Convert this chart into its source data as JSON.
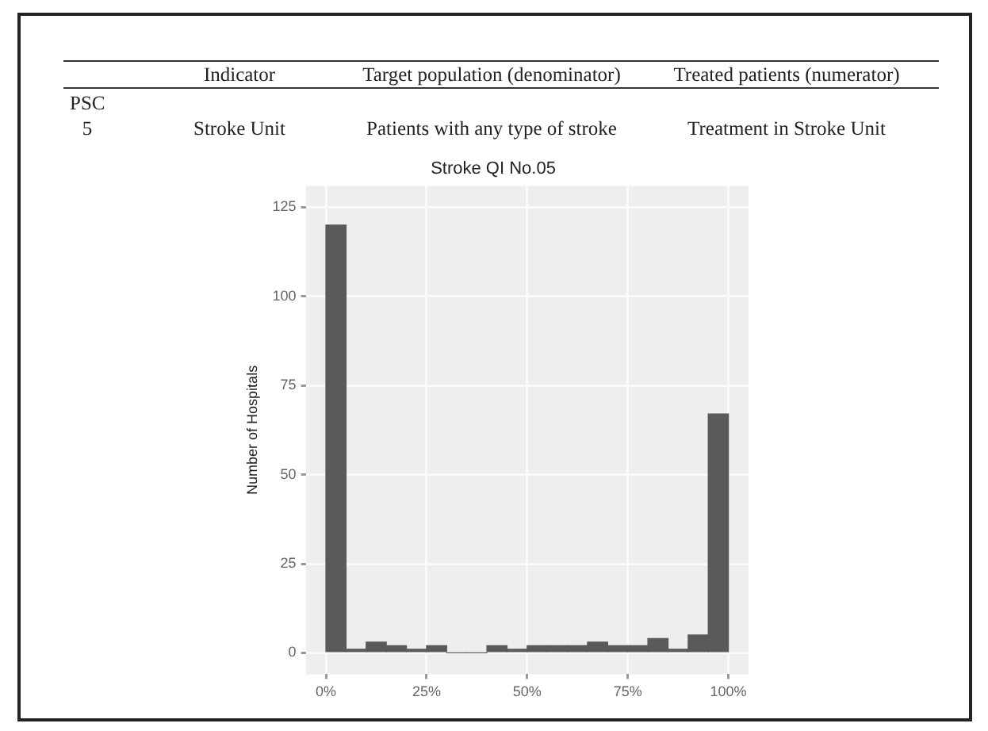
{
  "chart_data": {
    "type": "histogram",
    "title": "Stroke QI No.05",
    "ylabel": "Number of Hospitals",
    "bins": [
      0,
      5,
      10,
      15,
      20,
      25,
      30,
      35,
      40,
      45,
      50,
      55,
      60,
      65,
      70,
      75,
      80,
      85,
      90,
      95,
      100
    ],
    "values": [
      120,
      1,
      3,
      2,
      1,
      2,
      0,
      0,
      2,
      1,
      2,
      2,
      2,
      3,
      2,
      2,
      4,
      1,
      5,
      67
    ],
    "color": "#5a5a5a",
    "xlim": [
      -5,
      105
    ],
    "xticks": [
      {
        "value": 0,
        "label": "0%"
      },
      {
        "value": 25,
        "label": "25%"
      },
      {
        "value": 50,
        "label": "50%"
      },
      {
        "value": 75,
        "label": "75%"
      },
      {
        "value": 100,
        "label": "100%"
      }
    ],
    "ylim": [
      -6,
      131
    ],
    "yticks": [
      0,
      25,
      50,
      75,
      100,
      125
    ],
    "grid": true,
    "legend": false,
    "annotations": [
      "Indicator",
      "Target population (denominator)",
      "Treated patients (numerator)",
      "PSC",
      "5",
      "Stroke Unit",
      "Patients with any type of stroke",
      "Treatment in Stroke Unit"
    ]
  }
}
